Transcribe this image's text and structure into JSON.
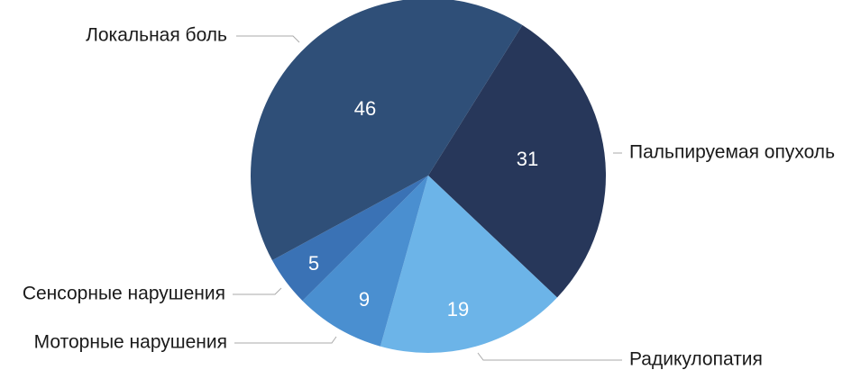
{
  "chart_data": {
    "type": "pie",
    "categories": [
      "Пальпируемая опухоль",
      "Радикулопатия",
      "Моторные нарушения",
      "Сенсорные нарушения",
      "Локальная боль"
    ],
    "values": [
      31,
      19,
      9,
      5,
      46
    ],
    "colors": [
      "#27375a",
      "#6cb4e8",
      "#4a8fd0",
      "#3a72b5",
      "#2f4f78"
    ]
  }
}
